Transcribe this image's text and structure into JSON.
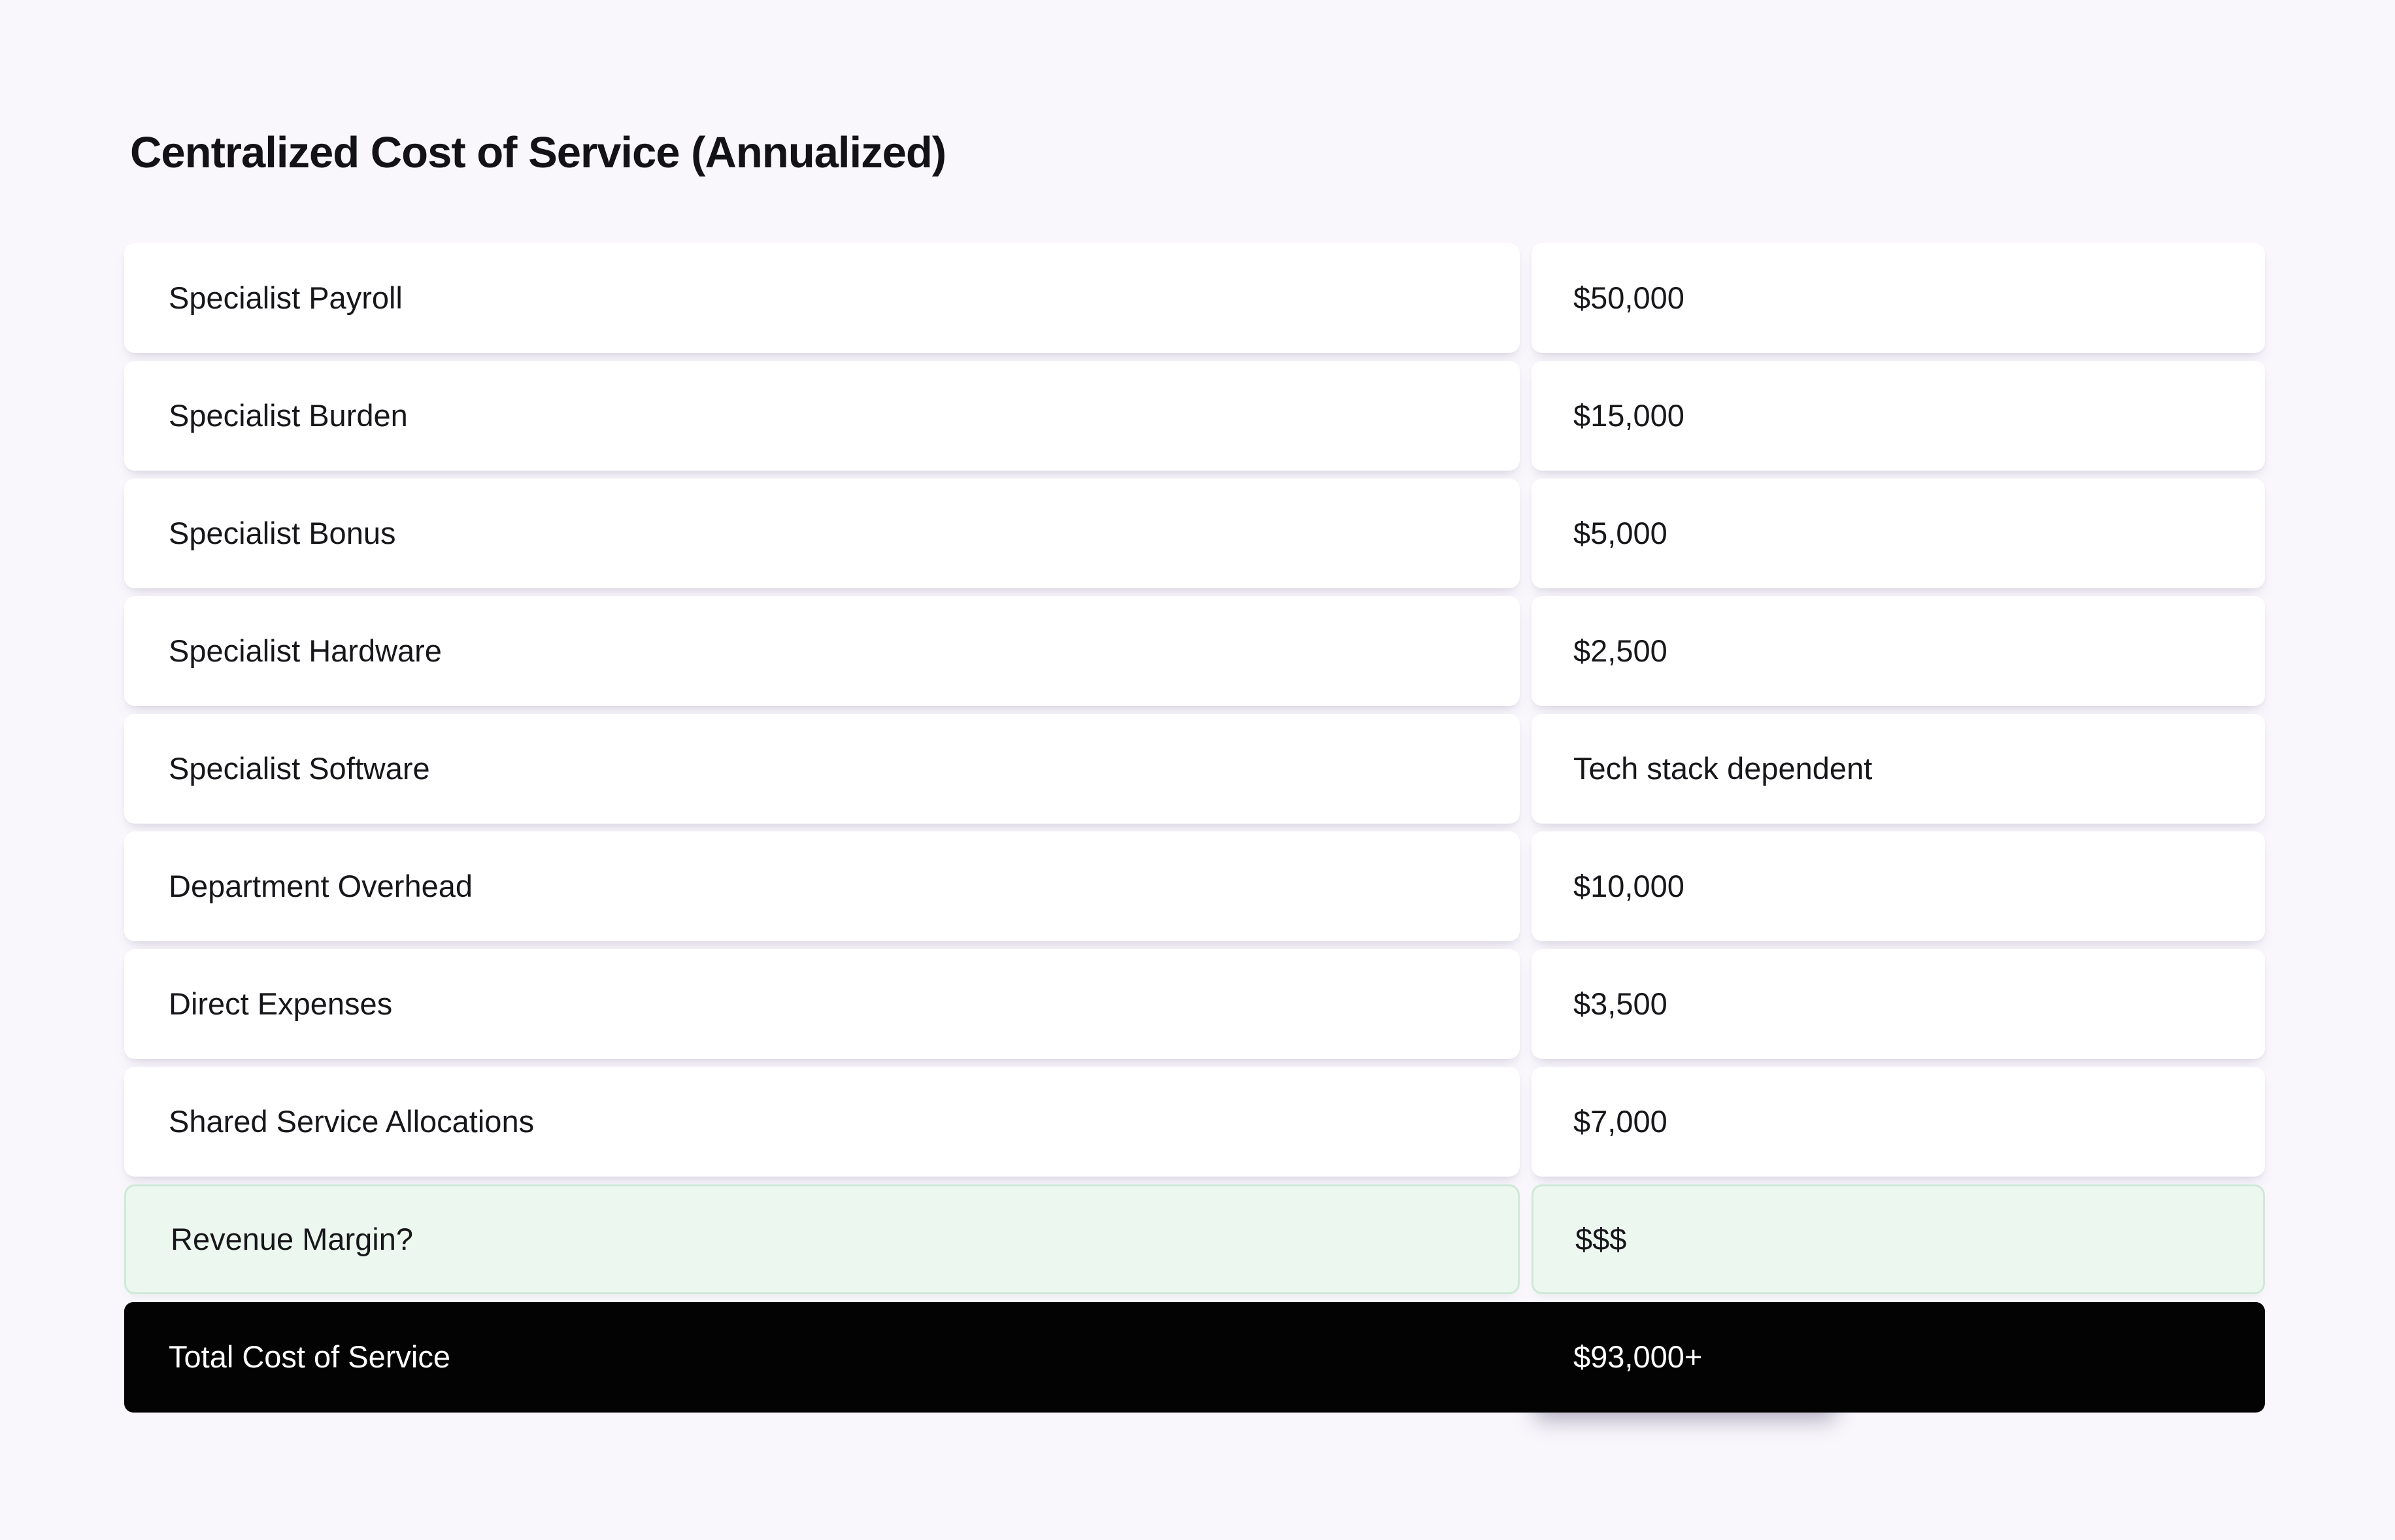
{
  "title": "Centralized Cost of Service (Annualized)",
  "colors": {
    "background": "#f9f7fc",
    "card": "#ffffff",
    "text": "#17171b",
    "highlight_bg": "#ecf7f0",
    "highlight_border": "#cfe9d8",
    "total_bg": "#030303",
    "total_text": "#ffffff"
  },
  "rows": [
    {
      "label": "Specialist Payroll",
      "value": "$50,000",
      "variant": "default"
    },
    {
      "label": "Specialist Burden",
      "value": "$15,000",
      "variant": "default"
    },
    {
      "label": "Specialist Bonus",
      "value": "$5,000",
      "variant": "default"
    },
    {
      "label": "Specialist Hardware",
      "value": "$2,500",
      "variant": "default"
    },
    {
      "label": "Specialist Software",
      "value": "Tech stack dependent",
      "variant": "default"
    },
    {
      "label": "Department Overhead",
      "value": "$10,000",
      "variant": "default"
    },
    {
      "label": "Direct Expenses",
      "value": "$3,500",
      "variant": "default"
    },
    {
      "label": "Shared Service Allocations",
      "value": "$7,000",
      "variant": "default"
    },
    {
      "label": "Revenue Margin?",
      "value": "$$$",
      "variant": "highlight"
    },
    {
      "label": "Total Cost of Service",
      "value": "$93,000+",
      "variant": "total"
    }
  ]
}
